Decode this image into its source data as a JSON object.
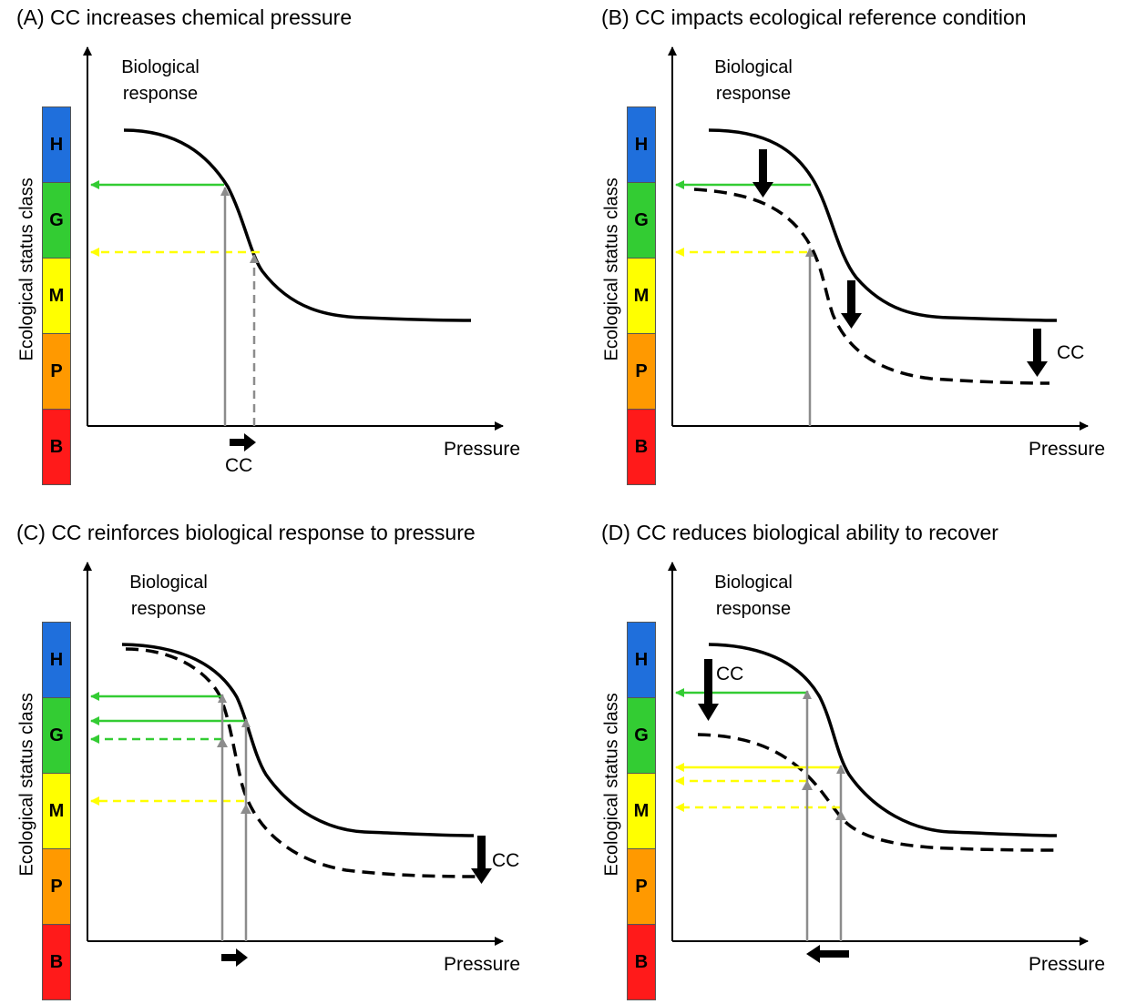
{
  "colors": {
    "status": [
      "#1f6fdc",
      "#33cc33",
      "#ffff00",
      "#ff9900",
      "#ff1a1a"
    ],
    "curve": "#000000",
    "projection": "#8c8c8c",
    "good_arrow": "#33cc33",
    "moderate_arrow": "#ffff00"
  },
  "labels": {
    "y_axis": "Ecological status class",
    "bio_line1": "Biological",
    "bio_line2": "response",
    "x_axis": "Pressure",
    "cc": "CC"
  },
  "status_classes": [
    "H",
    "G",
    "M",
    "P",
    "B"
  ],
  "panels": [
    {
      "id": "A",
      "title": "(A) CC increases chemical pressure"
    },
    {
      "id": "B",
      "title": "(B) CC impacts ecological reference condition"
    },
    {
      "id": "C",
      "title": "(C) CC reinforces biological response to pressure"
    },
    {
      "id": "D",
      "title": "(D) CC reduces biological ability to recover"
    }
  ]
}
